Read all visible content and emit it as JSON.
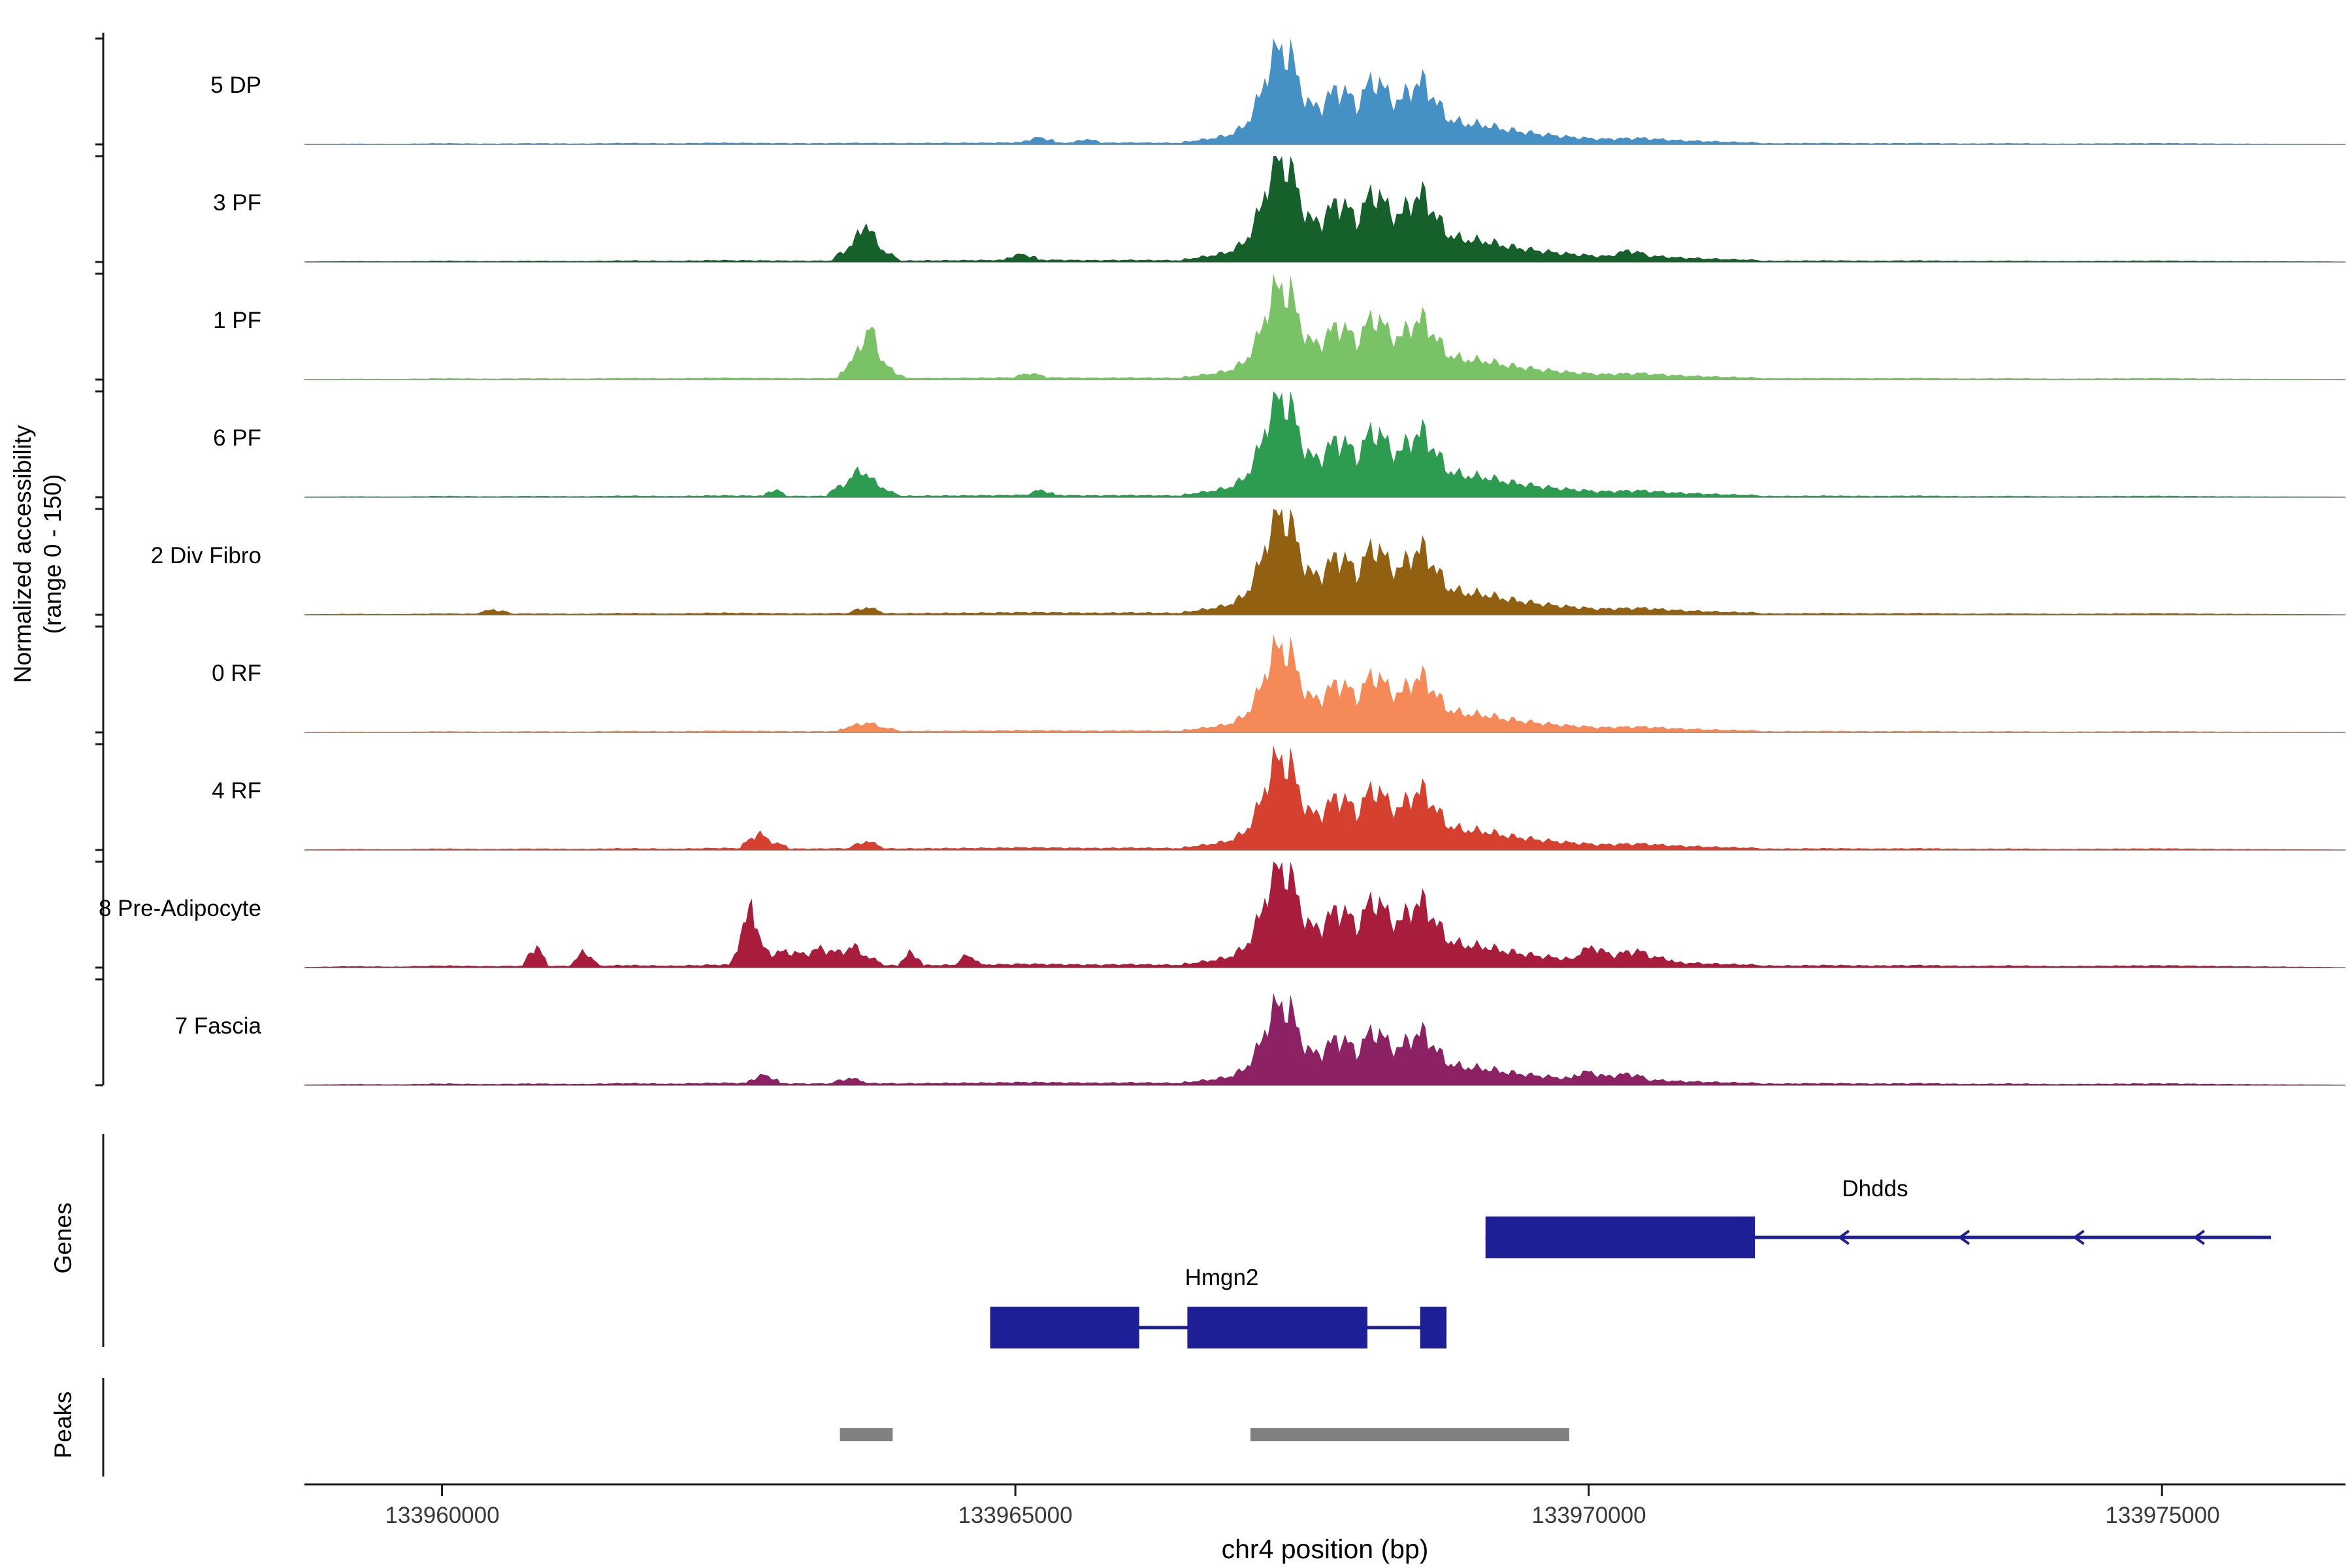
{
  "figure": {
    "ylabel_line1": "Normalized accessibility",
    "ylabel_line2": "(range 0 - 150)",
    "genes_label": "Genes",
    "peaks_label": "Peaks",
    "xlabel": "chr4 position (bp)"
  },
  "chart_data": {
    "type": "area",
    "title": "",
    "xlabel": "chr4 position (bp)",
    "ylabel": "Normalized accessibility (range 0 - 150)",
    "x_range": [
      133958800,
      133976600
    ],
    "per_track_y_range": [
      0,
      150
    ],
    "x_ticks": [
      133960000,
      133965000,
      133970000,
      133975000
    ],
    "main_profile": [
      [
        133966450,
        0.01
      ],
      [
        133966650,
        0.04
      ],
      [
        133966850,
        0.08
      ],
      [
        133967000,
        0.18
      ],
      [
        133967120,
        0.45
      ],
      [
        133967220,
        0.85
      ],
      [
        133967300,
        1.0
      ],
      [
        133967400,
        0.93
      ],
      [
        133967480,
        0.62
      ],
      [
        133967570,
        0.38
      ],
      [
        133967680,
        0.4
      ],
      [
        133967800,
        0.58
      ],
      [
        133967890,
        0.52
      ],
      [
        133967980,
        0.4
      ],
      [
        133968070,
        0.6
      ],
      [
        133968160,
        0.68
      ],
      [
        133968260,
        0.48
      ],
      [
        133968360,
        0.44
      ],
      [
        133968460,
        0.6
      ],
      [
        133968560,
        0.64
      ],
      [
        133968660,
        0.46
      ],
      [
        133968770,
        0.26
      ],
      [
        133968900,
        0.21
      ],
      [
        133969100,
        0.19
      ],
      [
        133969300,
        0.14
      ],
      [
        133969550,
        0.1
      ],
      [
        133969800,
        0.07
      ],
      [
        133970100,
        0.045
      ],
      [
        133970450,
        0.055
      ],
      [
        133970800,
        0.03
      ],
      [
        133971200,
        0.015
      ],
      [
        133971500,
        0.008
      ]
    ],
    "base_noise": [
      [
        133958800,
        0.4
      ],
      [
        133959200,
        1.2
      ],
      [
        133959600,
        0.8
      ],
      [
        133960000,
        1.8
      ],
      [
        133960400,
        1.2
      ],
      [
        133960800,
        1.8
      ],
      [
        133961200,
        1.3
      ],
      [
        133961600,
        2.2
      ],
      [
        133962000,
        1.6
      ],
      [
        133962400,
        2.6
      ],
      [
        133962800,
        2.2
      ],
      [
        133963200,
        1.8
      ],
      [
        133963600,
        2.4
      ],
      [
        133964000,
        2.0
      ],
      [
        133964400,
        2.4
      ],
      [
        133964800,
        2.8
      ],
      [
        133965100,
        3.4
      ],
      [
        133965400,
        3.0
      ],
      [
        133965700,
        2.6
      ],
      [
        133966000,
        3.0
      ],
      [
        133966300,
        2.6
      ],
      [
        133966600,
        2.0
      ],
      [
        133971700,
        1.8
      ],
      [
        133972100,
        2.2
      ],
      [
        133972500,
        1.8
      ],
      [
        133972900,
        2.2
      ],
      [
        133973300,
        1.4
      ],
      [
        133973700,
        1.8
      ],
      [
        133974100,
        1.2
      ],
      [
        133974500,
        1.6
      ],
      [
        133975000,
        2.0
      ],
      [
        133975500,
        1.3
      ],
      [
        133976000,
        0.9
      ],
      [
        133976500,
        0.4
      ]
    ],
    "tracks": [
      {
        "name": "5 DP",
        "color": "#4590c5",
        "main_amplitude": 135,
        "noise_scale": 0.9,
        "extra_peaks": [
          [
            [
              133965050,
              1
            ],
            [
              133965200,
              7
            ],
            [
              133965350,
              3
            ]
          ],
          [
            [
              133965500,
              1
            ],
            [
              133965600,
              5
            ],
            [
              133965750,
              2
            ]
          ]
        ]
      },
      {
        "name": "3 PF",
        "color": "#16602c",
        "main_amplitude": 145,
        "noise_scale": 1.0,
        "extra_peaks": [
          [
            [
              133963400,
              3
            ],
            [
              133963580,
              22
            ],
            [
              133963680,
              55
            ],
            [
              133963760,
              35
            ],
            [
              133963860,
              12
            ],
            [
              133963980,
              4
            ]
          ],
          [
            [
              133964900,
              2
            ],
            [
              133965050,
              8
            ],
            [
              133965200,
              3
            ]
          ],
          [
            [
              133970200,
              2
            ],
            [
              133970350,
              7
            ],
            [
              133970500,
              2
            ]
          ]
        ]
      },
      {
        "name": "1 PF",
        "color": "#79c366",
        "main_amplitude": 130,
        "noise_scale": 1.0,
        "extra_peaks": [
          [
            [
              133963450,
              4
            ],
            [
              133963600,
              30
            ],
            [
              133963730,
              75
            ],
            [
              133963830,
              28
            ],
            [
              133963950,
              7
            ],
            [
              133964050,
              3
            ]
          ],
          [
            [
              133965000,
              2
            ],
            [
              133965120,
              6
            ],
            [
              133965260,
              2
            ]
          ]
        ]
      },
      {
        "name": "6 PF",
        "color": "#2d9b50",
        "main_amplitude": 140,
        "noise_scale": 1.0,
        "extra_peaks": [
          [
            [
              133962800,
              2
            ],
            [
              133962900,
              9
            ],
            [
              133963000,
              3
            ]
          ],
          [
            [
              133963350,
              3
            ],
            [
              133963520,
              18
            ],
            [
              133963650,
              38
            ],
            [
              133963770,
              20
            ],
            [
              133963900,
              6
            ],
            [
              133964000,
              2
            ]
          ],
          [
            [
              133965100,
              2
            ],
            [
              133965220,
              7
            ],
            [
              133965350,
              2
            ]
          ]
        ]
      },
      {
        "name": "2 Div Fibro",
        "color": "#926011",
        "main_amplitude": 142,
        "noise_scale": 1.1,
        "extra_peaks": [
          [
            [
              133960300,
              2
            ],
            [
              133960450,
              6
            ],
            [
              133960600,
              2
            ]
          ],
          [
            [
              133963550,
              2
            ],
            [
              133963700,
              8
            ],
            [
              133963850,
              3
            ]
          ]
        ]
      },
      {
        "name": "0 RF",
        "color": "#f58a58",
        "main_amplitude": 120,
        "noise_scale": 0.9,
        "extra_peaks": [
          [
            [
              133963450,
              2
            ],
            [
              133963620,
              9
            ],
            [
              133963720,
              12
            ],
            [
              133963850,
              5
            ],
            [
              133963980,
              2
            ]
          ]
        ]
      },
      {
        "name": "4 RF",
        "color": "#d6402f",
        "main_amplitude": 128,
        "noise_scale": 1.1,
        "extra_peaks": [
          [
            [
              133962600,
              3
            ],
            [
              133962760,
              22
            ],
            [
              133962880,
              9
            ],
            [
              133963020,
              3
            ]
          ],
          [
            [
              133963550,
              2
            ],
            [
              133963700,
              10
            ],
            [
              133963850,
              3
            ]
          ]
        ]
      },
      {
        "name": "8 Pre-Adipocyte",
        "color": "#a81c3c",
        "main_amplitude": 140,
        "noise_scale": 1.6,
        "extra_peaks": [
          [
            [
              133960700,
              2
            ],
            [
              133960820,
              30
            ],
            [
              133960920,
              4
            ]
          ],
          [
            [
              133961120,
              2
            ],
            [
              133961240,
              22
            ],
            [
              133961360,
              3
            ]
          ],
          [
            [
              133962520,
              4
            ],
            [
              133962640,
              55
            ],
            [
              133962700,
              95
            ],
            [
              133962780,
              28
            ],
            [
              133962880,
              16
            ],
            [
              133963000,
              20
            ],
            [
              133963150,
              16
            ],
            [
              133963300,
              24
            ],
            [
              133963450,
              18
            ],
            [
              133963600,
              26
            ],
            [
              133963720,
              10
            ],
            [
              133963850,
              5
            ]
          ],
          [
            [
              133963980,
              3
            ],
            [
              133964080,
              18
            ],
            [
              133964200,
              5
            ]
          ],
          [
            [
              133964480,
              3
            ],
            [
              133964580,
              14
            ],
            [
              133964700,
              4
            ]
          ],
          [
            [
              133969880,
              8
            ],
            [
              133970050,
              20
            ],
            [
              133970200,
              8
            ],
            [
              133970420,
              14
            ],
            [
              133970560,
              6
            ],
            [
              133970750,
              3
            ]
          ]
        ]
      },
      {
        "name": "7 Fascia",
        "color": "#8c2164",
        "main_amplitude": 112,
        "noise_scale": 1.3,
        "extra_peaks": [
          [
            [
              133962650,
              2
            ],
            [
              133962800,
              12
            ],
            [
              133962950,
              4
            ]
          ],
          [
            [
              133963400,
              2
            ],
            [
              133963550,
              7
            ],
            [
              133963700,
              3
            ]
          ],
          [
            [
              133969850,
              4
            ],
            [
              133970000,
              11
            ],
            [
              133970150,
              5
            ],
            [
              133970350,
              8
            ],
            [
              133970500,
              3
            ]
          ]
        ]
      }
    ],
    "genes": [
      {
        "name": "Dhdds",
        "exons": [
          [
            133969100,
            133971450
          ]
        ],
        "line_end": 133975950,
        "arrow_positions": [
          133972200,
          133973250,
          133974250,
          133975300
        ],
        "arrow_direction": "left",
        "label_bp": 133972500
      },
      {
        "name": "Hmgn2",
        "exons": [
          [
            133964780,
            133966080
          ],
          [
            133966500,
            133968070
          ],
          [
            133968530,
            133968760
          ]
        ],
        "label_bp": 133966800
      }
    ],
    "peak_regions": [
      [
        133963470,
        133963930
      ],
      [
        133967050,
        133969830
      ]
    ],
    "colors": {
      "gene": "#1e1e96",
      "peak_bar": "#808080",
      "baseline": "#969696",
      "axis": "#1a1a1a"
    }
  }
}
